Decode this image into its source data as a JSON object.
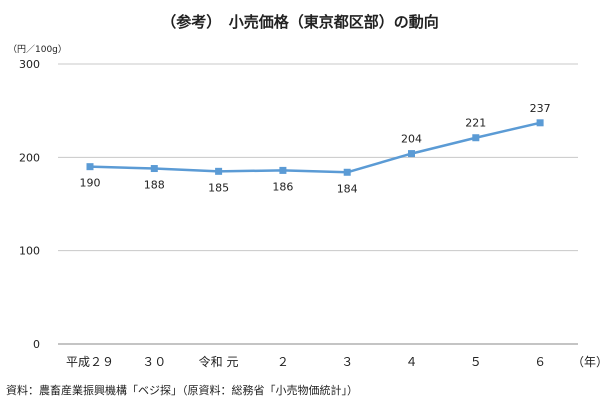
{
  "chart_data": {
    "type": "line",
    "title": "（参考）　小売価格（東京都区部）の動向",
    "unit_label": "（円／100g）",
    "x_unit": "（年）",
    "categories": [
      "平成２９",
      "３０",
      "令和 元",
      "２",
      "３",
      "４",
      "５",
      "６"
    ],
    "series": [
      {
        "values": [
          190,
          188,
          185,
          186,
          184,
          204,
          221,
          237
        ]
      }
    ],
    "data_labels": [
      "190",
      "188",
      "185",
      "186",
      "184",
      "204",
      "221",
      "237"
    ],
    "y_ticks": [
      "0",
      "100",
      "200",
      "300"
    ],
    "ylim": [
      0,
      300
    ],
    "grid": true,
    "legend": "none",
    "colors": {
      "series": "#5b9bd5",
      "grid": "#c8c8c8",
      "axis": "#888888"
    },
    "source": "資料：農畜産業振興機構「ベジ探」（原資料：総務省「小売物価統計」）"
  }
}
